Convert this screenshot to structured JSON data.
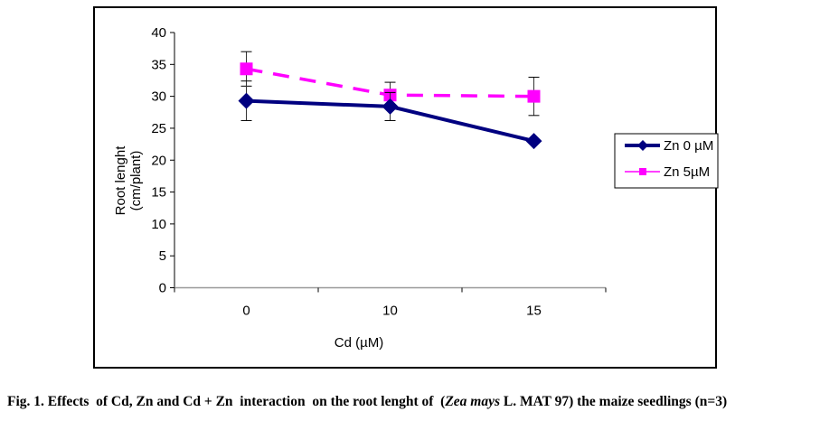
{
  "chart_data": {
    "type": "line",
    "title": "",
    "xlabel": "Cd  (µM)",
    "ylabel_line1": "Root lenght",
    "ylabel_line2": "(cm/plant)",
    "categories": [
      "0",
      "10",
      "15"
    ],
    "ylim": [
      0,
      40
    ],
    "yticks": [
      "0",
      "5",
      "10",
      "15",
      "20",
      "25",
      "30",
      "35",
      "40"
    ],
    "ytick_values": [
      0,
      5,
      10,
      15,
      20,
      25,
      30,
      35,
      40
    ],
    "grid": false,
    "legend_position": "right",
    "series": [
      {
        "name": "Zn 0 µM",
        "color": "#000080",
        "marker": "diamond",
        "line_style": "solid",
        "values": [
          29.3,
          28.4,
          23.0
        ],
        "error": [
          3.1,
          2.2,
          0.3
        ]
      },
      {
        "name": "Zn 5µM",
        "color": "#ff00ff",
        "marker": "square",
        "line_style": "dashed",
        "values": [
          34.3,
          30.2,
          30.0
        ],
        "error": [
          2.7,
          2.0,
          3.0
        ]
      }
    ]
  },
  "caption": {
    "prefix": "Fig. 1. Effects  of Cd, Zn and Cd + Zn  interaction  on the root lenght of  (",
    "italic": "Zea mays",
    "suffix": " L. MAT 97) the maize seedlings (n=3)"
  }
}
